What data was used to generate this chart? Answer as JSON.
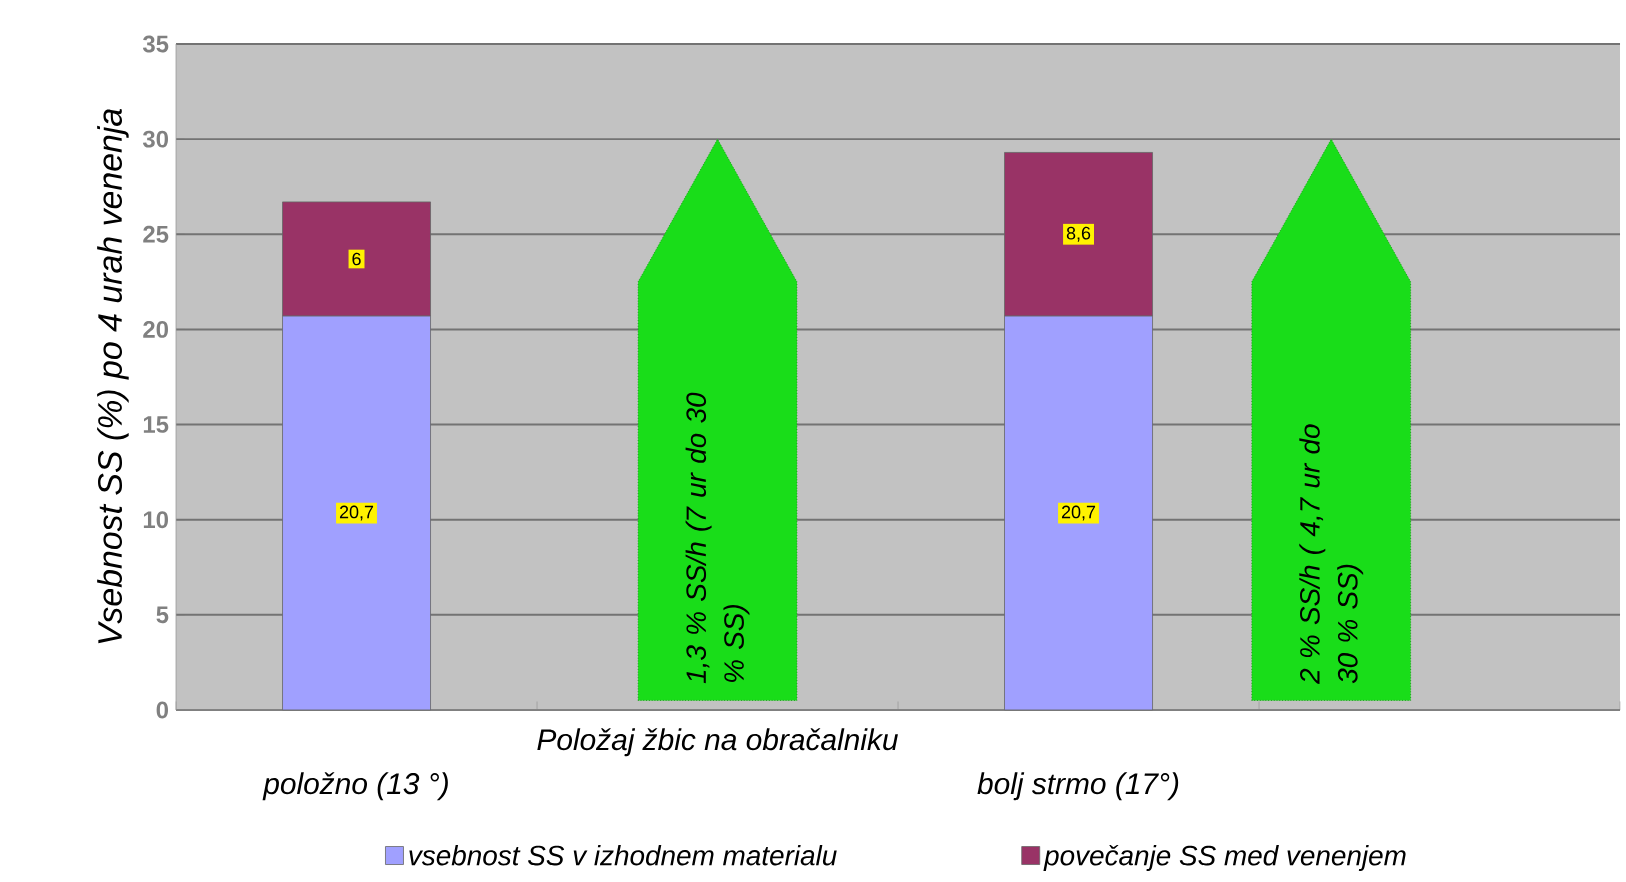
{
  "chart_data": {
    "type": "bar",
    "stacked": true,
    "ylabel": "Vsebnost SS (%) po 4 urah venenja",
    "categories": [
      "položno (13 °)",
      "Položaj žbic na obračalniku",
      "bolj strmo (17°)",
      null
    ],
    "series": [
      {
        "name": "vsebnost SS v izhodnem materialu",
        "color": "#a0a0ff",
        "values": [
          20.7,
          null,
          20.7,
          null
        ],
        "value_labels": [
          "20,7",
          null,
          "20,7",
          null
        ]
      },
      {
        "name": "povečanje SS med venenjem",
        "color": "#993366",
        "values": [
          6,
          null,
          8.6,
          null
        ],
        "value_labels": [
          "6",
          null,
          "8,6",
          null
        ]
      }
    ],
    "annotations": [
      "1,3 % SS/h (7 ur do 30 % SS)",
      "2 % SS/h ( 4,7 ur do 30 % SS)"
    ],
    "ylim": [
      0,
      35
    ],
    "yticks": [
      0,
      5,
      10,
      15,
      20,
      25,
      30,
      35
    ],
    "grid": "y",
    "legend": "bottom"
  }
}
